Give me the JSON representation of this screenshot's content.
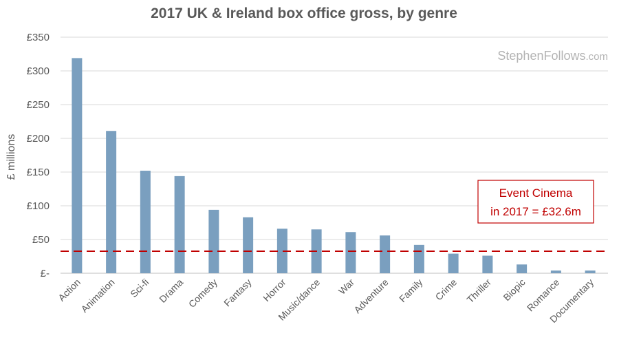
{
  "chart_data": {
    "type": "bar",
    "title": "2017 UK & Ireland box office gross, by genre",
    "xlabel": "",
    "ylabel": "£ millions",
    "ylim": [
      0,
      350
    ],
    "yticks": [
      0,
      50,
      100,
      150,
      200,
      250,
      300,
      350
    ],
    "ytick_labels": [
      "£-",
      "£50",
      "£100",
      "£150",
      "£200",
      "£250",
      "£300",
      "£350"
    ],
    "grid": true,
    "categories": [
      "Action",
      "Animation",
      "Sci-fi",
      "Drama",
      "Comedy",
      "Fantasy",
      "Horror",
      "Music/dance",
      "War",
      "Adventure",
      "Family",
      "Crime",
      "Thriller",
      "Biopic",
      "Romance",
      "Documentary"
    ],
    "values": [
      319,
      211,
      152,
      144,
      94,
      83,
      66,
      65,
      61,
      56,
      42,
      29,
      26,
      13,
      4,
      4
    ],
    "reference_line": {
      "value": 32.6,
      "style": "dashed",
      "color": "#c00000"
    },
    "annotation": {
      "line1": "Event Cinema",
      "line2": "in 2017 = £32.6m"
    },
    "watermark": {
      "name": "StephenFollows",
      "tld": ".com"
    },
    "bar_color": "#7a9fbf"
  }
}
